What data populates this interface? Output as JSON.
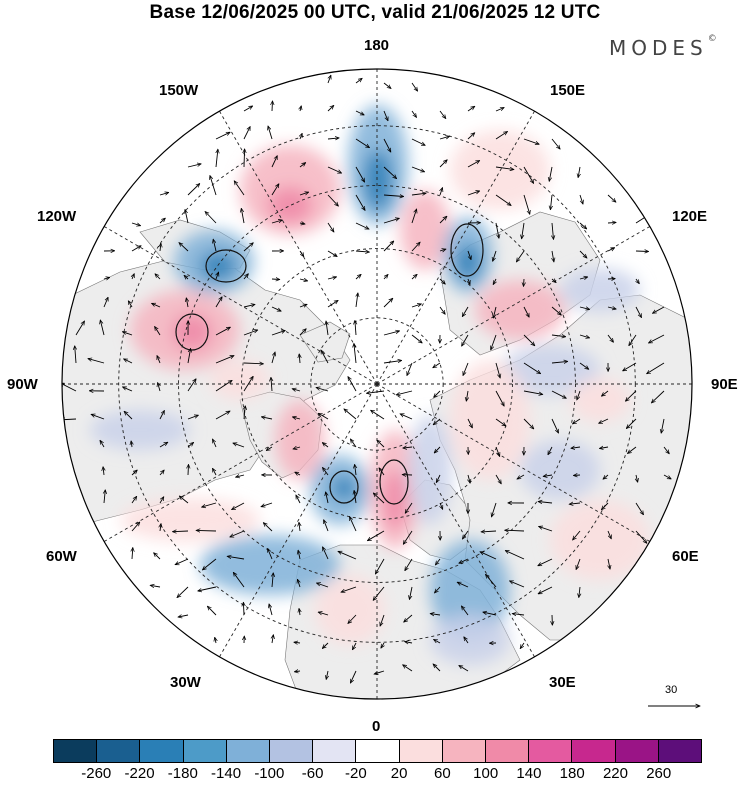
{
  "title": "Base 12/06/2025 00 UTC, valid 21/06/2025 12 UTC",
  "logo": {
    "text": "MODES",
    "mark": "©"
  },
  "longitude_labels": {
    "top": "180",
    "top_left": "150W",
    "top_right": "150E",
    "upper_left": "120W",
    "upper_right": "120E",
    "left": "90W",
    "right": "90E",
    "lower_left": "60W",
    "lower_right": "60E",
    "bottom_left": "30W",
    "bottom_right": "30E",
    "bottom": "0"
  },
  "reference_vector": {
    "value": "30"
  },
  "colorbar": {
    "colors": [
      "#0b3c5d",
      "#1a5f90",
      "#2a7fb6",
      "#4d9bc8",
      "#7fb0d8",
      "#b3c2e2",
      "#e3e4f3",
      "#ffffff",
      "#fbdede",
      "#f6b4bf",
      "#f08aa8",
      "#e45aa0",
      "#c7288e",
      "#9a1486",
      "#5d0e7a"
    ],
    "ticks": [
      "-260",
      "-220",
      "-180",
      "-140",
      "-100",
      "-60",
      "-20",
      "20",
      "60",
      "100",
      "140",
      "180",
      "220",
      "260"
    ]
  },
  "anomaly_colors": {
    "strong_negative": "#2a7fb6",
    "negative": "#7fb0d8",
    "weak_negative": "#c9d1ea",
    "weak_positive": "#fbdede",
    "positive": "#f6b4bf",
    "strong_positive": "#f08aa8",
    "land": "#ededed"
  },
  "map": {
    "projection": "north-polar-stereographic"
  }
}
